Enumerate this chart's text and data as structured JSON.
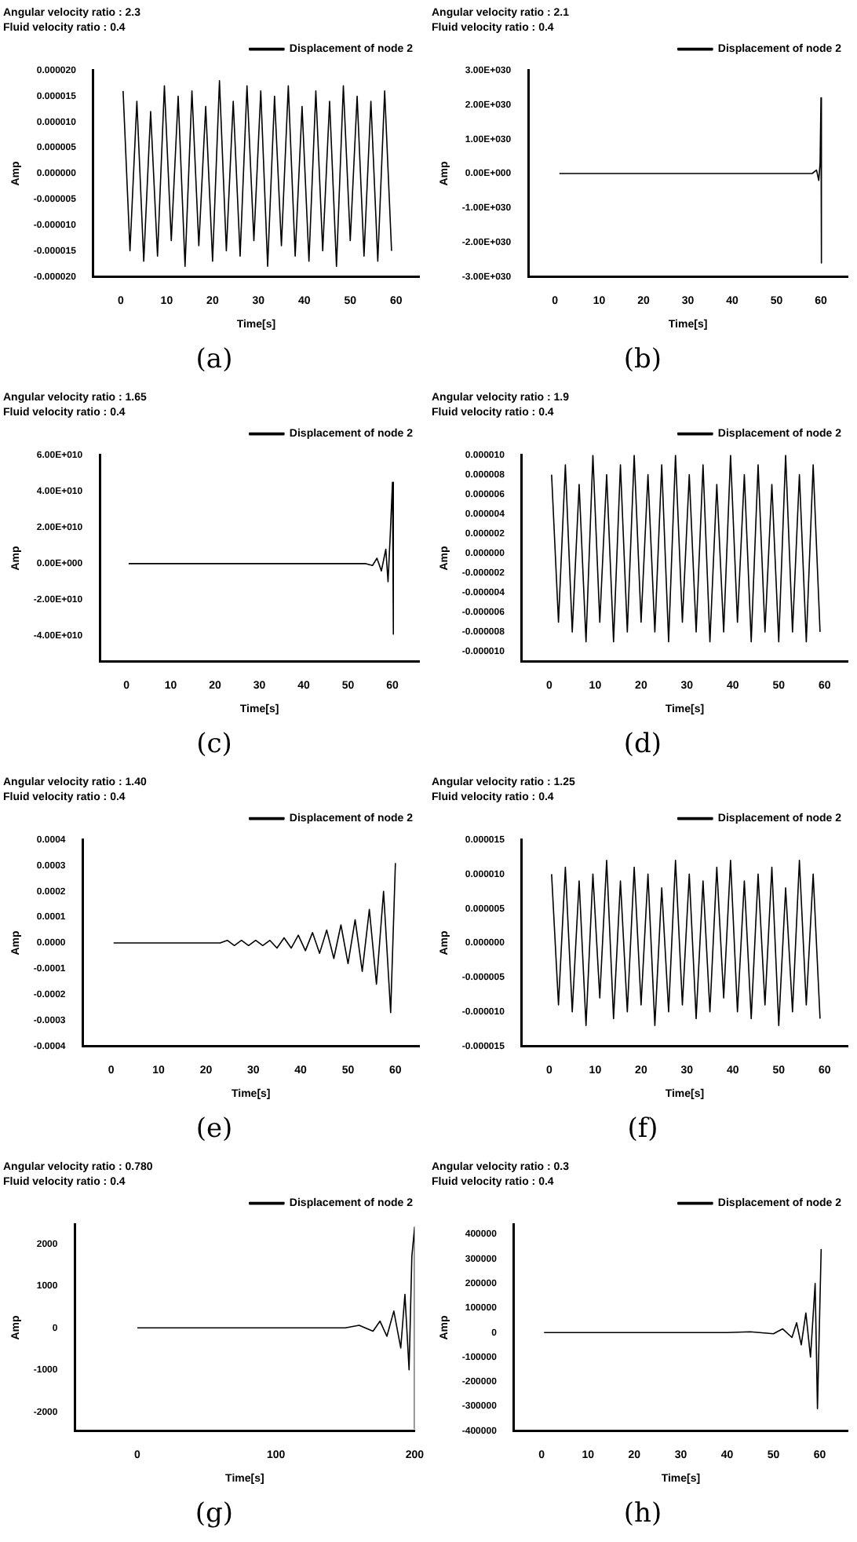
{
  "chart_data": [
    {
      "type": "line",
      "title": "Angular velocity ratio : 2.3",
      "subtitle": "Fluid velocity ratio : 0.4",
      "xlabel": "Time[s]",
      "ylabel": "Amp",
      "legend": "top right",
      "grid": false,
      "marker": "none",
      "annotations": [
        "(a)"
      ],
      "xlim": [
        -6,
        65
      ],
      "xticks": [
        0,
        10,
        20,
        30,
        40,
        50,
        60
      ],
      "ylim": [
        -2e-05,
        2e-05
      ],
      "yticks": [
        {
          "value": 2e-05,
          "label": "0.000020"
        },
        {
          "value": 1.5e-05,
          "label": "0.000015"
        },
        {
          "value": 1e-05,
          "label": "0.000010"
        },
        {
          "value": 5e-06,
          "label": "0.000005"
        },
        {
          "value": 0,
          "label": "0.000000"
        },
        {
          "value": -5e-06,
          "label": "-0.000005"
        },
        {
          "value": -1e-05,
          "label": "-0.000010"
        },
        {
          "value": -1.5e-05,
          "label": "-0.000015"
        },
        {
          "value": -2e-05,
          "label": "-0.000020"
        }
      ],
      "x": [
        0.5,
        2,
        3.5,
        5,
        6.5,
        8,
        9.5,
        11,
        12.5,
        14,
        15.5,
        17,
        18.5,
        20,
        21.5,
        23,
        24.5,
        26,
        27.5,
        29,
        30.5,
        32,
        33.5,
        35,
        36.5,
        38,
        39.5,
        41,
        42.5,
        44,
        45.5,
        47,
        48.5,
        50,
        51.5,
        53,
        54.5,
        56,
        57.5,
        59
      ],
      "series": [
        {
          "name": "Displacement of node 2",
          "color": "#000000",
          "values": [
            1.6e-05,
            -1.5e-05,
            1.4e-05,
            -1.7e-05,
            1.2e-05,
            -1.6e-05,
            1.7e-05,
            -1.3e-05,
            1.5e-05,
            -1.8e-05,
            1.6e-05,
            -1.4e-05,
            1.3e-05,
            -1.7e-05,
            1.8e-05,
            -1.5e-05,
            1.4e-05,
            -1.6e-05,
            1.7e-05,
            -1.3e-05,
            1.6e-05,
            -1.8e-05,
            1.5e-05,
            -1.4e-05,
            1.7e-05,
            -1.6e-05,
            1.3e-05,
            -1.7e-05,
            1.6e-05,
            -1.5e-05,
            1.4e-05,
            -1.8e-05,
            1.7e-05,
            -1.3e-05,
            1.5e-05,
            -1.6e-05,
            1.4e-05,
            -1.7e-05,
            1.6e-05,
            -1.5e-05
          ]
        }
      ]
    },
    {
      "type": "line",
      "title": "Angular velocity ratio : 2.1",
      "subtitle": "Fluid velocity ratio : 0.4",
      "xlabel": "Time[s]",
      "ylabel": "Amp",
      "legend": "top right",
      "grid": false,
      "marker": "none",
      "annotations": [
        "(b)"
      ],
      "xlim": [
        -6,
        66
      ],
      "xticks": [
        0,
        10,
        20,
        30,
        40,
        50,
        60
      ],
      "ylim": [
        -3e+30,
        3e+30
      ],
      "yticks": [
        {
          "value": 3e+30,
          "label": "3.00E+030"
        },
        {
          "value": 2e+30,
          "label": "2.00E+030"
        },
        {
          "value": 1e+30,
          "label": "1.00E+030"
        },
        {
          "value": 0,
          "label": "0.00E+000"
        },
        {
          "value": -1e+30,
          "label": "-1.00E+030"
        },
        {
          "value": -2e+30,
          "label": "-2.00E+030"
        },
        {
          "value": -3e+30,
          "label": "-3.00E+030"
        }
      ],
      "x": [
        1,
        10,
        20,
        30,
        40,
        50,
        55,
        58,
        59,
        59.5,
        59.8,
        60,
        60.1
      ],
      "series": [
        {
          "name": "Displacement of node 2",
          "color": "#000000",
          "values": [
            0,
            0,
            0,
            0,
            0,
            0,
            0,
            0,
            1e+29,
            -2e+29,
            3e+29,
            2.2e+30,
            -2.6e+30
          ]
        }
      ]
    },
    {
      "type": "line",
      "title": "Angular velocity ratio : 1.65",
      "subtitle": "Fluid velocity ratio : 0.4",
      "xlabel": "Time[s]",
      "ylabel": "Amp",
      "legend": "top right",
      "grid": false,
      "marker": "none",
      "annotations": [
        "(c)"
      ],
      "xlim": [
        -6,
        66
      ],
      "xticks": [
        0,
        10,
        20,
        30,
        40,
        50,
        60
      ],
      "ylim": [
        -54000000000.0,
        60000000000.0
      ],
      "yticks": [
        {
          "value": 60000000000.0,
          "label": "6.00E+010"
        },
        {
          "value": 40000000000.0,
          "label": "4.00E+010"
        },
        {
          "value": 20000000000.0,
          "label": "2.00E+010"
        },
        {
          "value": 0,
          "label": "0.00E+000"
        },
        {
          "value": -20000000000.0,
          "label": "-2.00E+010"
        },
        {
          "value": -40000000000.0,
          "label": "-4.00E+010"
        }
      ],
      "x": [
        0.5,
        10,
        20,
        30,
        40,
        50,
        54,
        55.5,
        56.5,
        57.5,
        58.5,
        59,
        59.5,
        60,
        60.2
      ],
      "series": [
        {
          "name": "Displacement of node 2",
          "color": "#000000",
          "values": [
            0,
            0,
            0,
            0,
            0,
            0,
            0,
            -1000000000.0,
            3000000000.0,
            -4000000000.0,
            8000000000.0,
            -10000000000.0,
            16000000000.0,
            45000000000.0,
            -39000000000.0
          ]
        }
      ]
    },
    {
      "type": "line",
      "title": "Angular velocity ratio : 1.9",
      "subtitle": "Fluid velocity ratio : 0.4",
      "xlabel": "Time[s]",
      "ylabel": "Amp",
      "legend": "top right",
      "grid": false,
      "marker": "none",
      "annotations": [
        "(d)"
      ],
      "xlim": [
        -6,
        65
      ],
      "xticks": [
        0,
        10,
        20,
        30,
        40,
        50,
        60
      ],
      "ylim": [
        -1.1e-05,
        1e-05
      ],
      "yticks": [
        {
          "value": 1e-05,
          "label": "0.000010"
        },
        {
          "value": 8e-06,
          "label": "0.000008"
        },
        {
          "value": 6e-06,
          "label": "0.000006"
        },
        {
          "value": 4e-06,
          "label": "0.000004"
        },
        {
          "value": 2e-06,
          "label": "0.000002"
        },
        {
          "value": 0,
          "label": "0.000000"
        },
        {
          "value": -2e-06,
          "label": "-0.000002"
        },
        {
          "value": -4e-06,
          "label": "-0.000004"
        },
        {
          "value": -6e-06,
          "label": "-0.000006"
        },
        {
          "value": -8e-06,
          "label": "-0.000008"
        },
        {
          "value": -1e-05,
          "label": "-0.000010"
        }
      ],
      "x": [
        0.5,
        2,
        3.5,
        5,
        6.5,
        8,
        9.5,
        11,
        12.5,
        14,
        15.5,
        17,
        18.5,
        20,
        21.5,
        23,
        24.5,
        26,
        27.5,
        29,
        30.5,
        32,
        33.5,
        35,
        36.5,
        38,
        39.5,
        41,
        42.5,
        44,
        45.5,
        47,
        48.5,
        50,
        51.5,
        53,
        54.5,
        56,
        57.5,
        59
      ],
      "series": [
        {
          "name": "Displacement of node 2",
          "color": "#000000",
          "values": [
            8e-06,
            -7e-06,
            9e-06,
            -8e-06,
            7e-06,
            -9e-06,
            1e-05,
            -7e-06,
            8e-06,
            -9e-06,
            9e-06,
            -8e-06,
            1e-05,
            -7e-06,
            8e-06,
            -8e-06,
            9e-06,
            -9e-06,
            1e-05,
            -7e-06,
            8e-06,
            -8e-06,
            9e-06,
            -9e-06,
            7e-06,
            -8e-06,
            1e-05,
            -7e-06,
            8e-06,
            -9e-06,
            9e-06,
            -8e-06,
            7e-06,
            -9e-06,
            1e-05,
            -8e-06,
            8e-06,
            -9e-06,
            9e-06,
            -8e-06
          ]
        }
      ]
    },
    {
      "type": "line",
      "title": "Angular velocity ratio : 1.40",
      "subtitle": "Fluid velocity ratio : 0.4",
      "xlabel": "Time[s]",
      "ylabel": "Amp",
      "legend": "top right",
      "grid": false,
      "marker": "none",
      "annotations": [
        "(e)"
      ],
      "xlim": [
        -6,
        65
      ],
      "xticks": [
        0,
        10,
        20,
        30,
        40,
        50,
        60
      ],
      "ylim": [
        -0.0004,
        0.0004
      ],
      "yticks": [
        {
          "value": 0.0004,
          "label": "0.0004"
        },
        {
          "value": 0.0003,
          "label": "0.0003"
        },
        {
          "value": 0.0002,
          "label": "0.0002"
        },
        {
          "value": 0.0001,
          "label": "0.0001"
        },
        {
          "value": 0,
          "label": "0.0000"
        },
        {
          "value": -0.0001,
          "label": "-0.0001"
        },
        {
          "value": -0.0002,
          "label": "-0.0002"
        },
        {
          "value": -0.0003,
          "label": "-0.0003"
        },
        {
          "value": -0.0004,
          "label": "-0.0004"
        }
      ],
      "x": [
        0.5,
        2,
        3.5,
        5,
        6.5,
        8,
        9.5,
        11,
        12.5,
        14,
        15.5,
        17,
        18.5,
        20,
        21.5,
        23,
        24.5,
        26,
        27.5,
        29,
        30.5,
        32,
        33.5,
        35,
        36.5,
        38,
        39.5,
        41,
        42.5,
        44,
        45.5,
        47,
        48.5,
        50,
        51.5,
        53,
        54.5,
        56,
        57.5,
        59,
        60
      ],
      "series": [
        {
          "name": "Displacement of node 2",
          "color": "#000000",
          "values": [
            0,
            0,
            0,
            0,
            0,
            0,
            0,
            0,
            0,
            0,
            0,
            0,
            0,
            0,
            0,
            0,
            1e-05,
            -1e-05,
            1e-05,
            -1e-05,
            1e-05,
            -1e-05,
            1e-05,
            -2e-05,
            2e-05,
            -2e-05,
            3e-05,
            -3e-05,
            4e-05,
            -4e-05,
            5e-05,
            -6e-05,
            7e-05,
            -8e-05,
            9e-05,
            -0.00011,
            0.00013,
            -0.00016,
            0.0002,
            -0.00027,
            0.00031
          ]
        }
      ]
    },
    {
      "type": "line",
      "title": "Angular velocity ratio : 1.25",
      "subtitle": "Fluid velocity ratio : 0.4",
      "xlabel": "Time[s]",
      "ylabel": "Amp",
      "legend": "top right",
      "grid": false,
      "marker": "none",
      "annotations": [
        "(f)"
      ],
      "xlim": [
        -6,
        65
      ],
      "xticks": [
        0,
        10,
        20,
        30,
        40,
        50,
        60
      ],
      "ylim": [
        -1.5e-05,
        1.5e-05
      ],
      "yticks": [
        {
          "value": 1.5e-05,
          "label": "0.000015"
        },
        {
          "value": 1e-05,
          "label": "0.000010"
        },
        {
          "value": 5e-06,
          "label": "0.000005"
        },
        {
          "value": 0,
          "label": "0.000000"
        },
        {
          "value": -5e-06,
          "label": "-0.000005"
        },
        {
          "value": -1e-05,
          "label": "-0.000010"
        },
        {
          "value": -1.5e-05,
          "label": "-0.000015"
        }
      ],
      "x": [
        0.5,
        2,
        3.5,
        5,
        6.5,
        8,
        9.5,
        11,
        12.5,
        14,
        15.5,
        17,
        18.5,
        20,
        21.5,
        23,
        24.5,
        26,
        27.5,
        29,
        30.5,
        32,
        33.5,
        35,
        36.5,
        38,
        39.5,
        41,
        42.5,
        44,
        45.5,
        47,
        48.5,
        50,
        51.5,
        53,
        54.5,
        56,
        57.5,
        59
      ],
      "series": [
        {
          "name": "Displacement of node 2",
          "color": "#000000",
          "values": [
            1e-05,
            -9e-06,
            1.1e-05,
            -1e-05,
            9e-06,
            -1.2e-05,
            1e-05,
            -8e-06,
            1.2e-05,
            -1.1e-05,
            9e-06,
            -1e-05,
            1.1e-05,
            -9e-06,
            1e-05,
            -1.2e-05,
            8e-06,
            -1e-05,
            1.2e-05,
            -9e-06,
            1e-05,
            -1.1e-05,
            9e-06,
            -1e-05,
            1.1e-05,
            -8e-06,
            1.2e-05,
            -1e-05,
            9e-06,
            -1.1e-05,
            1e-05,
            -9e-06,
            1.1e-05,
            -1.2e-05,
            8e-06,
            -1e-05,
            1.2e-05,
            -9e-06,
            1e-05,
            -1.1e-05
          ]
        }
      ]
    },
    {
      "type": "line",
      "title": "Angular velocity ratio : 0.780",
      "subtitle": "Fluid velocity ratio : 0.4",
      "xlabel": "Time[s]",
      "ylabel": "Amp",
      "legend": "top right",
      "grid": false,
      "marker": "none",
      "annotations": [
        "(g)"
      ],
      "xlim": [
        -45,
        200
      ],
      "xticks": [
        0,
        100,
        200
      ],
      "ylim": [
        -2450,
        2460
      ],
      "yticks": [
        2000,
        1000,
        0,
        -1000,
        -2000
      ],
      "x": [
        0,
        50,
        100,
        150,
        160,
        170,
        175,
        180,
        185,
        190,
        193,
        196,
        198,
        200,
        200
      ],
      "series": [
        {
          "name": "Displacement of node 2",
          "color": "#000000",
          "values": [
            0,
            0,
            0,
            0,
            60,
            -80,
            160,
            -200,
            400,
            -480,
            800,
            -1000,
            1700,
            2400,
            -2400
          ]
        }
      ]
    },
    {
      "type": "line",
      "title": "Angular velocity ratio : 0.3",
      "subtitle": "Fluid velocity ratio : 0.4",
      "xlabel": "Time[s]",
      "ylabel": "Amp",
      "legend": "top right",
      "grid": false,
      "marker": "none",
      "annotations": [
        "(h)"
      ],
      "xlim": [
        -6,
        66
      ],
      "xticks": [
        0,
        10,
        20,
        30,
        40,
        50,
        60
      ],
      "ylim": [
        -400000,
        440000
      ],
      "yticks": [
        400000,
        300000,
        200000,
        100000,
        0,
        -100000,
        -200000,
        -300000,
        -400000
      ],
      "x": [
        0.5,
        10,
        20,
        30,
        40,
        45,
        50,
        52,
        54,
        55,
        56,
        57,
        58,
        59,
        59.5,
        60.3
      ],
      "series": [
        {
          "name": "Displacement of node 2",
          "color": "#000000",
          "values": [
            0,
            0,
            0,
            0,
            0,
            3000,
            -5000,
            15000,
            -20000,
            40000,
            -50000,
            80000,
            -100000,
            200000,
            -310000,
            340000
          ]
        }
      ]
    }
  ]
}
